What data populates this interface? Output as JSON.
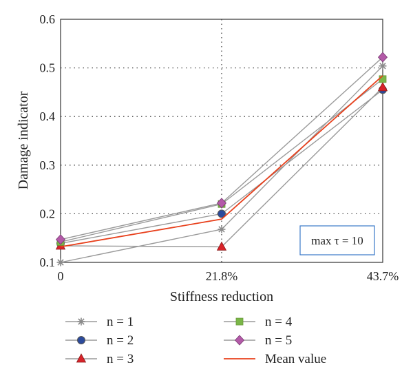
{
  "chart_data": {
    "type": "line",
    "x_categories": [
      "0",
      "21.8%",
      "43.7%"
    ],
    "ylim": [
      0.1,
      0.6
    ],
    "y_ticks": [
      "0.1",
      "0.2",
      "0.3",
      "0.4",
      "0.5",
      "0.6"
    ],
    "xlabel": "Stiffness reduction",
    "ylabel": "Damage indicator",
    "grid": "dotted",
    "legend_position": "bottom",
    "annotation": "max τ = 10",
    "series": [
      {
        "name": "n = 1",
        "values": [
          0.1,
          0.168,
          0.504
        ],
        "color": "#9a9a9a",
        "marker": "asterisk"
      },
      {
        "name": "n = 2",
        "values": [
          0.139,
          0.2,
          0.455
        ],
        "color": "#9a9a9a",
        "marker": "circle",
        "marker_color": "#2b4a9c"
      },
      {
        "name": "n = 3",
        "values": [
          0.134,
          0.132,
          0.46
        ],
        "color": "#9a9a9a",
        "marker": "triangle",
        "marker_color": "#d8232a"
      },
      {
        "name": "n = 4",
        "values": [
          0.142,
          0.22,
          0.477
        ],
        "color": "#9a9a9a",
        "marker": "square",
        "marker_color": "#7ab648"
      },
      {
        "name": "n = 5",
        "values": [
          0.147,
          0.222,
          0.522
        ],
        "color": "#9a9a9a",
        "marker": "diamond",
        "marker_color": "#b35aa8"
      },
      {
        "name": "Mean value",
        "values": [
          0.132,
          0.189,
          0.484
        ],
        "color": "#e8401c",
        "marker": "none"
      }
    ]
  }
}
